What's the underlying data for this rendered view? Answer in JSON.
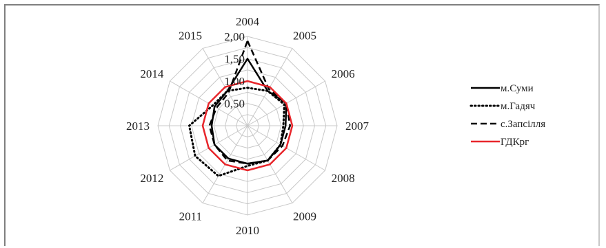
{
  "chart_data": {
    "type": "radar",
    "categories": [
      "2004",
      "2005",
      "2006",
      "2007",
      "2008",
      "2009",
      "2010",
      "2011",
      "2012",
      "2013",
      "2014",
      "2015"
    ],
    "rticks": [
      "0,50",
      "1,00",
      "1,50",
      "2,00"
    ],
    "rmax": 2.0,
    "series": [
      {
        "name": "м.Суми",
        "color": "#000000",
        "dash": "solid",
        "width": 2.5,
        "values": [
          1.5,
          0.9,
          1.0,
          0.85,
          0.85,
          0.9,
          0.85,
          0.85,
          0.85,
          0.8,
          0.85,
          0.9
        ]
      },
      {
        "name": "м.Гадяч",
        "color": "#000000",
        "dash": "dot",
        "width": 3,
        "values": [
          0.85,
          0.9,
          0.95,
          0.8,
          0.85,
          0.9,
          0.9,
          1.3,
          1.35,
          1.3,
          0.9,
          0.9
        ]
      },
      {
        "name": "с.Запсілля",
        "color": "#000000",
        "dash": "dash",
        "width": 2.5,
        "values": [
          1.9,
          0.95,
          1.0,
          0.95,
          0.9,
          0.9,
          0.85,
          0.9,
          0.85,
          0.85,
          0.8,
          0.85
        ]
      },
      {
        "name": "ГДКрг",
        "color": "#e8262b",
        "dash": "solid",
        "width": 2.5,
        "values": [
          1.0,
          1.0,
          1.0,
          1.0,
          1.0,
          1.0,
          1.0,
          1.0,
          1.0,
          1.0,
          1.0,
          1.0
        ]
      }
    ],
    "legend": "right"
  }
}
